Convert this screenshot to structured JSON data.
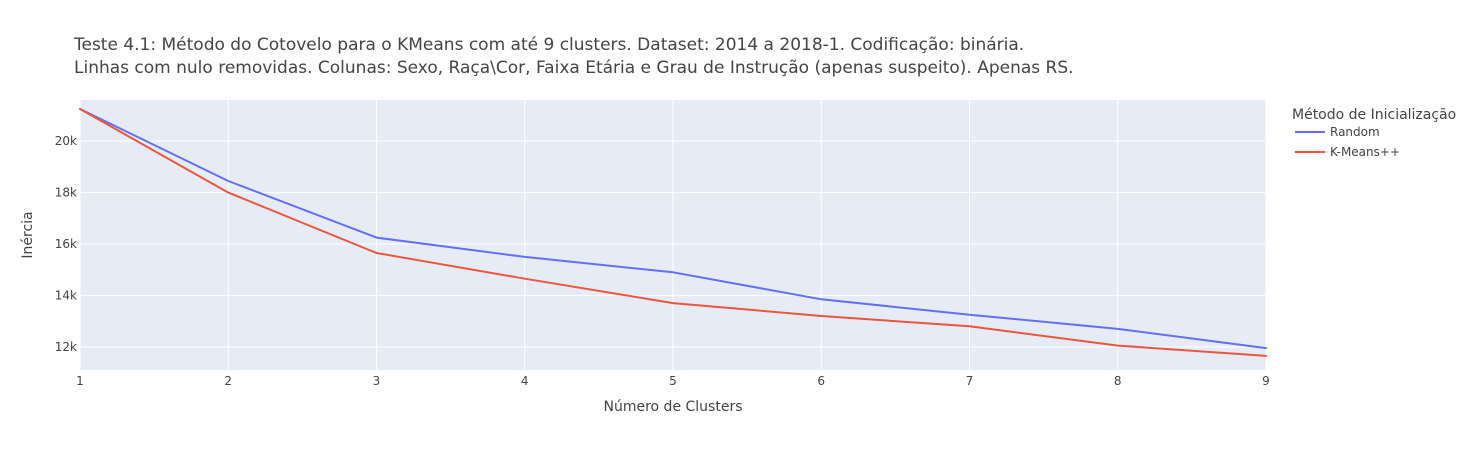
{
  "chart_data": {
    "type": "line",
    "title_lines": [
      "Teste 4.1: Método do Cotovelo para o KMeans com até 9 clusters. Dataset: 2014 a 2018-1. Codificação: binária.",
      "Linhas com nulo removidas. Colunas: Sexo, Raça\\Cor, Faixa Etária e Grau de Instrução (apenas suspeito). Apenas RS."
    ],
    "xlabel": "Número de Clusters",
    "ylabel": "Inércia",
    "x": [
      1,
      2,
      3,
      4,
      5,
      6,
      7,
      8,
      9
    ],
    "xlim": [
      1,
      9
    ],
    "ylim": [
      11100,
      21600
    ],
    "y_ticks": [
      12000,
      14000,
      16000,
      18000,
      20000
    ],
    "y_tick_labels": [
      "12k",
      "14k",
      "16k",
      "18k",
      "20k"
    ],
    "x_tick_labels": [
      "1",
      "2",
      "3",
      "4",
      "5",
      "6",
      "7",
      "8",
      "9"
    ],
    "grid": true,
    "plot_background": "#e5ecf6",
    "legend": {
      "title": "Método de Inicialização",
      "placement": "top-right-outside"
    },
    "series": [
      {
        "name": "Random",
        "color": "#636efa",
        "values": [
          21250,
          18450,
          16250,
          15500,
          14900,
          13850,
          13250,
          12700,
          11950
        ]
      },
      {
        "name": "K-Means++",
        "color": "#ef553b",
        "values": [
          21250,
          18000,
          15650,
          14650,
          13700,
          13200,
          12800,
          12050,
          11650
        ]
      }
    ]
  }
}
